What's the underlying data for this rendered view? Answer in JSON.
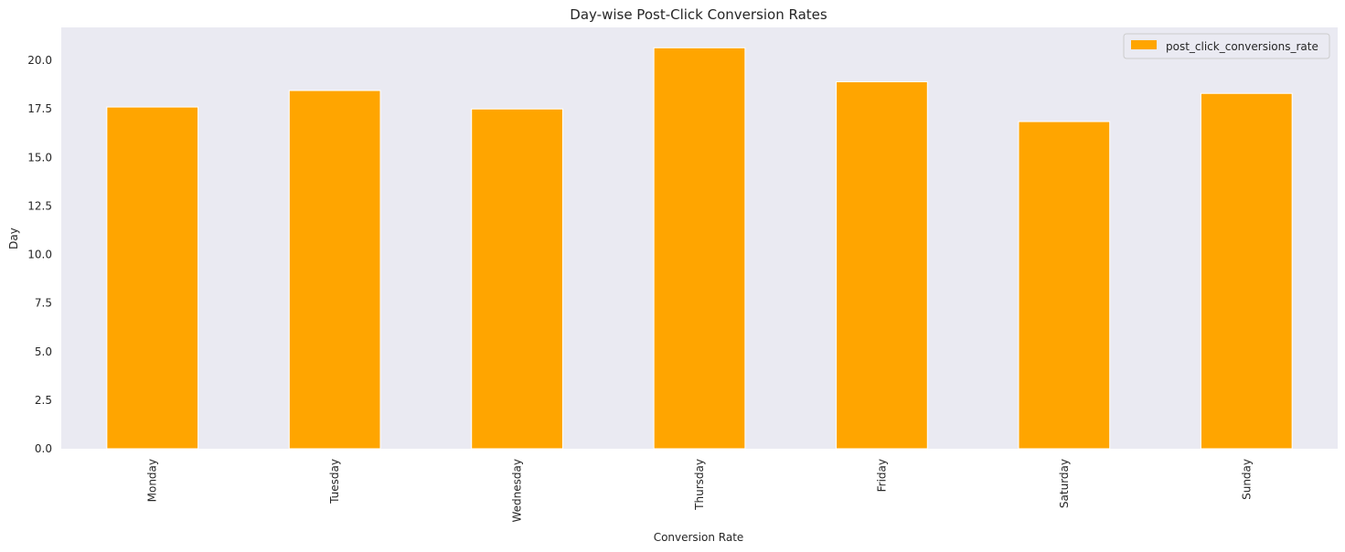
{
  "chart_data": {
    "type": "bar",
    "title": "Day-wise Post-Click Conversion Rates",
    "xlabel": "Conversion Rate",
    "ylabel": "Day",
    "categories": [
      "Monday",
      "Tuesday",
      "Wednesday",
      "Thursday",
      "Friday",
      "Saturday",
      "Sunday"
    ],
    "series": [
      {
        "name": "post_click_conversions_rate",
        "values": [
          17.6,
          18.45,
          17.5,
          20.65,
          18.9,
          16.85,
          18.3
        ]
      }
    ],
    "ylim": [
      0,
      21.7
    ],
    "yticks": [
      "0.0",
      "2.5",
      "5.0",
      "7.5",
      "10.0",
      "12.5",
      "15.0",
      "17.5",
      "20.0"
    ],
    "grid": false,
    "legend_position": "top-right",
    "colors": {
      "bar": "#FFA500",
      "plot_background": "#EAEAF2"
    }
  }
}
